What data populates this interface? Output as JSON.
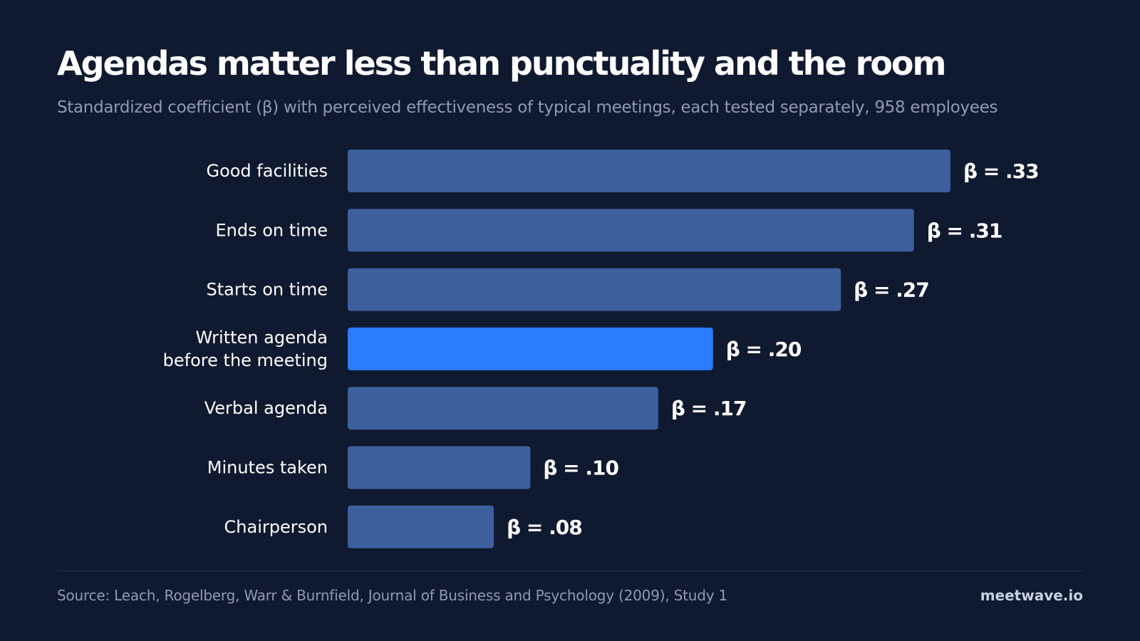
{
  "header": {
    "title": "Agendas matter less than punctuality and the room",
    "subtitle": "Standardized coefficient (β) with perceived effectiveness of typical meetings, each tested separately, 958 employees"
  },
  "footer": {
    "source": "Source: Leach, Rogelberg, Warr & Burnfield, Journal of Business and Psychology (2009), Study 1",
    "brand": "meetwave.io"
  },
  "colors": {
    "background": "#0f1a30",
    "bar": "#3d609c",
    "highlight": "#2a7bff",
    "label": "#ffffff",
    "muted": "#8e9bb3"
  },
  "chart_data": {
    "type": "bar",
    "orientation": "horizontal",
    "title": "Agendas matter less than punctuality and the room",
    "subtitle": "Standardized coefficient (β) with perceived effectiveness of typical meetings, each tested separately, 958 employees",
    "categories": [
      [
        "Good facilities"
      ],
      [
        "Ends on time"
      ],
      [
        "Starts on time"
      ],
      [
        "Written agenda",
        "before the meeting"
      ],
      [
        "Verbal agenda"
      ],
      [
        "Minutes taken"
      ],
      [
        "Chairperson"
      ]
    ],
    "values": [
      0.33,
      0.31,
      0.27,
      0.2,
      0.17,
      0.1,
      0.08
    ],
    "value_labels": [
      "β = .33",
      "β = .31",
      "β = .27",
      "β = .20",
      "β = .17",
      "β = .10",
      "β = .08"
    ],
    "highlight_index": 3,
    "xlim": [
      0,
      0.33
    ],
    "grid": false,
    "legend": "none"
  }
}
